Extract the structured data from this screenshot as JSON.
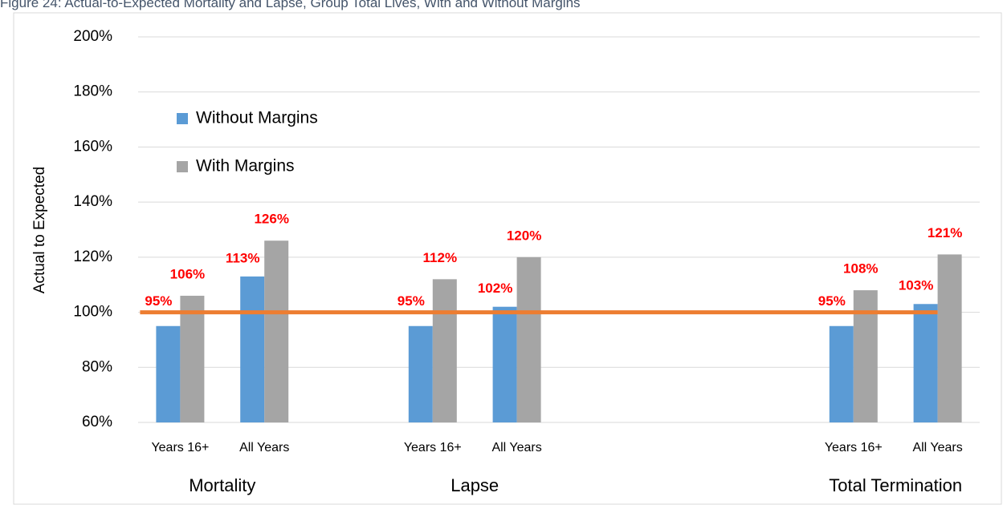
{
  "chart_data": {
    "type": "bar",
    "title": "Figure 24: Actual-to-Expected Mortality and Lapse, Group Total Lives, With and Without Margins",
    "y_axis_label": "Actual to Expected",
    "categories": [
      "Years 16+",
      "All Years",
      null,
      "Years 16+",
      "All Years",
      null,
      null,
      null,
      "Years 16+",
      "All Years"
    ],
    "groups": [
      {
        "name": "Mortality",
        "categories": [
          0,
          1
        ]
      },
      {
        "name": "Lapse",
        "categories": [
          3,
          4
        ]
      },
      {
        "name": "Total Termination",
        "categories": [
          8,
          9
        ]
      }
    ],
    "series": [
      {
        "name": "Without Margins",
        "color": "#5b9bd5",
        "values": [
          95,
          113,
          null,
          95,
          102,
          null,
          null,
          null,
          95,
          103
        ],
        "value_labels": [
          "95%",
          "113%",
          null,
          "95%",
          "102%",
          null,
          null,
          null,
          "95%",
          "103%"
        ]
      },
      {
        "name": "With Margins",
        "color": "#a5a5a5",
        "values": [
          106,
          126,
          null,
          112,
          120,
          null,
          null,
          null,
          108,
          121
        ],
        "value_labels": [
          "106%",
          "126%",
          null,
          "112%",
          "120%",
          null,
          null,
          null,
          "108%",
          "121%"
        ]
      }
    ],
    "reference_line": {
      "value": 100,
      "color": "#ed7d31"
    },
    "value_label_color": "#ff0000",
    "ylim": [
      60,
      200
    ],
    "yticks": [
      {
        "value": 60,
        "label": "60%"
      },
      {
        "value": 80,
        "label": "80%"
      },
      {
        "value": 100,
        "label": "100%"
      },
      {
        "value": 120,
        "label": "120%"
      },
      {
        "value": 140,
        "label": "140%"
      },
      {
        "value": 160,
        "label": "160%"
      },
      {
        "value": 180,
        "label": "180%"
      },
      {
        "value": 200,
        "label": "200%"
      }
    ],
    "grid": true,
    "legend": "upper left"
  }
}
